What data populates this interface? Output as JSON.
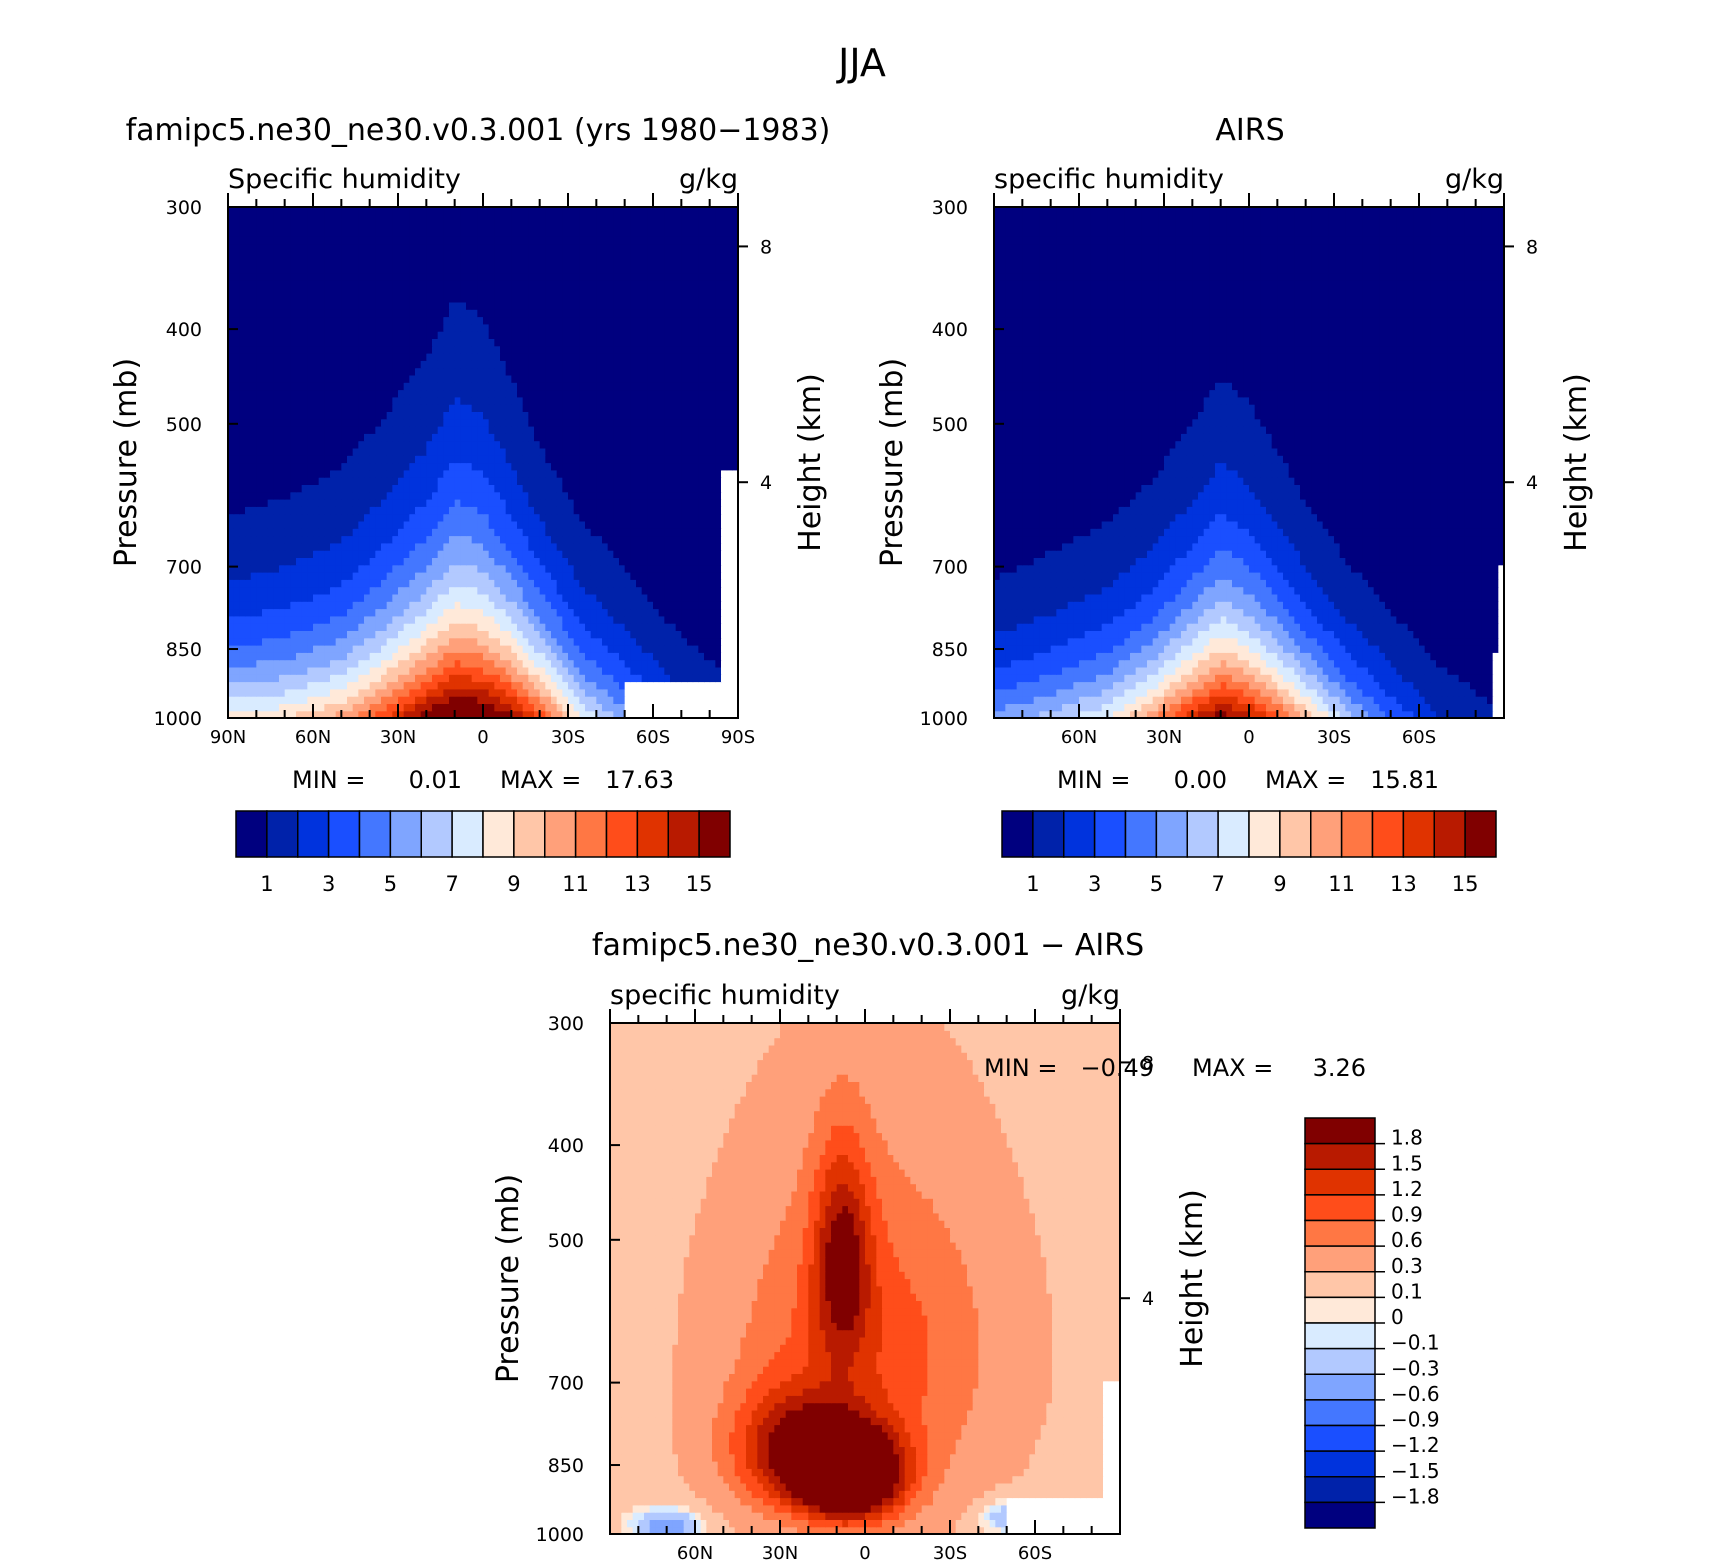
{
  "figure_title": "JJA",
  "panel_subtitle_unit": "g/kg",
  "chart_data": [
    {
      "type": "heatmap",
      "title": "famipc5.ne30_ne30.v0.3.001 (yrs 1980−1983)",
      "left_label": "Specific humidity",
      "right_label": "g/kg",
      "ylabel": "Pressure (mb)",
      "ylabel_right": "Height (km)",
      "x_ticks": [
        90,
        60,
        30,
        0,
        -30,
        -60,
        -90
      ],
      "x_tick_labels": [
        "90N",
        "60N",
        "30N",
        "0",
        "30S",
        "60S",
        "90S"
      ],
      "y_ticks": [
        300,
        400,
        500,
        700,
        850,
        1000
      ],
      "y_tick_labels": [
        "300",
        "400",
        "500",
        "700",
        "850",
        "1000"
      ],
      "height_ticks": [
        8,
        4
      ],
      "height_tick_labels": [
        "8",
        "4"
      ],
      "xlim": [
        90,
        -90
      ],
      "ylim": [
        1000,
        300
      ],
      "min_label": "MIN =",
      "min_value": "0.01",
      "max_label": "MAX =",
      "max_value": "17.63",
      "colorbar_labels": [
        "1",
        "3",
        "5",
        "7",
        "9",
        "11",
        "13",
        "15"
      ],
      "levels": [
        1,
        2,
        3,
        4,
        5,
        6,
        7,
        8,
        9,
        10,
        11,
        12,
        13,
        14,
        15
      ],
      "colors": [
        "#00007f",
        "#0022aa",
        "#0033dd",
        "#1a4fff",
        "#4477ff",
        "#7fa5ff",
        "#b2c9ff",
        "#d9ebff",
        "#ffe9d9",
        "#ffc6a8",
        "#ffa07a",
        "#ff7744",
        "#ff4d1a",
        "#e03300",
        "#b81a00",
        "#800000"
      ],
      "profile": [
        {
          "lat": 90,
          "surface": 8.5,
          "scale": 1.6
        },
        {
          "lat": 70,
          "surface": 9.0,
          "scale": 1.7
        },
        {
          "lat": 50,
          "surface": 10.5,
          "scale": 1.8
        },
        {
          "lat": 35,
          "surface": 13.0,
          "scale": 2.0
        },
        {
          "lat": 20,
          "surface": 16.0,
          "scale": 2.2
        },
        {
          "lat": 10,
          "surface": 17.5,
          "scale": 2.5
        },
        {
          "lat": 0,
          "surface": 17.0,
          "scale": 2.4
        },
        {
          "lat": -10,
          "surface": 15.5,
          "scale": 2.1
        },
        {
          "lat": -20,
          "surface": 13.0,
          "scale": 1.8
        },
        {
          "lat": -35,
          "surface": 8.0,
          "scale": 1.6
        },
        {
          "lat": -50,
          "surface": 5.5,
          "scale": 1.5
        },
        {
          "lat": -65,
          "surface": 3.5,
          "scale": 1.3
        },
        {
          "lat": -90,
          "surface": 1.5,
          "scale": 1.1
        }
      ],
      "missing": [
        {
          "lat0": -50,
          "lat1": -90,
          "p0": 920,
          "p1": 1000
        },
        {
          "lat0": -85,
          "lat1": -90,
          "p0": 560,
          "p1": 1000
        }
      ]
    },
    {
      "type": "heatmap",
      "title": "AIRS",
      "left_label": "specific humidity",
      "right_label": "g/kg",
      "ylabel": "Pressure (mb)",
      "ylabel_right": "Height (km)",
      "x_ticks": [
        60,
        30,
        0,
        -30,
        -60
      ],
      "x_tick_labels": [
        "60N",
        "30N",
        "0",
        "30S",
        "60S"
      ],
      "y_ticks": [
        300,
        400,
        500,
        700,
        850,
        1000
      ],
      "y_tick_labels": [
        "300",
        "400",
        "500",
        "700",
        "850",
        "1000"
      ],
      "height_ticks": [
        8,
        4
      ],
      "height_tick_labels": [
        "8",
        "4"
      ],
      "xlim": [
        90,
        -90
      ],
      "ylim": [
        1000,
        300
      ],
      "min_label": "MIN =",
      "min_value": "0.00",
      "max_label": "MAX =",
      "max_value": "15.81",
      "colorbar_labels": [
        "1",
        "3",
        "5",
        "7",
        "9",
        "11",
        "13",
        "15"
      ],
      "levels": [
        1,
        2,
        3,
        4,
        5,
        6,
        7,
        8,
        9,
        10,
        11,
        12,
        13,
        14,
        15
      ],
      "colors": [
        "#00007f",
        "#0022aa",
        "#0033dd",
        "#1a4fff",
        "#4477ff",
        "#7fa5ff",
        "#b2c9ff",
        "#d9ebff",
        "#ffe9d9",
        "#ffc6a8",
        "#ffa07a",
        "#ff7744",
        "#ff4d1a",
        "#e03300",
        "#b81a00",
        "#800000"
      ],
      "profile": [
        {
          "lat": 90,
          "surface": 5.5,
          "scale": 1.4
        },
        {
          "lat": 70,
          "surface": 6.5,
          "scale": 1.5
        },
        {
          "lat": 50,
          "surface": 8.0,
          "scale": 1.6
        },
        {
          "lat": 35,
          "surface": 10.5,
          "scale": 1.7
        },
        {
          "lat": 20,
          "surface": 14.0,
          "scale": 1.9
        },
        {
          "lat": 10,
          "surface": 15.8,
          "scale": 2.1
        },
        {
          "lat": 0,
          "surface": 14.5,
          "scale": 2.0
        },
        {
          "lat": -10,
          "surface": 12.5,
          "scale": 1.8
        },
        {
          "lat": -20,
          "surface": 10.0,
          "scale": 1.6
        },
        {
          "lat": -35,
          "surface": 6.5,
          "scale": 1.4
        },
        {
          "lat": -50,
          "surface": 4.0,
          "scale": 1.3
        },
        {
          "lat": -65,
          "surface": 2.2,
          "scale": 1.2
        },
        {
          "lat": -90,
          "surface": 1.0,
          "scale": 1.1
        }
      ],
      "missing": [
        {
          "lat0": -86,
          "lat1": -90,
          "p0": 850,
          "p1": 1000
        },
        {
          "lat0": -88,
          "lat1": -90,
          "p0": 700,
          "p1": 1000
        }
      ]
    },
    {
      "type": "heatmap",
      "title": "famipc5.ne30_ne30.v0.3.001 − AIRS",
      "left_label": "specific humidity",
      "right_label": "g/kg",
      "ylabel": "Pressure (mb)",
      "ylabel_right": "Height (km)",
      "x_ticks": [
        60,
        30,
        0,
        -30,
        -60
      ],
      "x_tick_labels": [
        "60N",
        "30N",
        "0",
        "30S",
        "60S"
      ],
      "y_ticks": [
        300,
        400,
        500,
        700,
        850,
        1000
      ],
      "y_tick_labels": [
        "300",
        "400",
        "500",
        "700",
        "850",
        "1000"
      ],
      "height_ticks": [
        8,
        4
      ],
      "height_tick_labels": [
        "8",
        "4"
      ],
      "xlim": [
        90,
        -90
      ],
      "ylim": [
        1000,
        300
      ],
      "min_label": "MIN =",
      "min_value": "−0.49",
      "max_label": "MAX =",
      "max_value": "3.26",
      "colorbar_labels": [
        "1.8",
        "1.5",
        "1.2",
        "0.9",
        "0.6",
        "0.3",
        "0.1",
        "0",
        "−0.1",
        "−0.3",
        "−0.6",
        "−0.9",
        "−1.2",
        "−1.5",
        "−1.8"
      ],
      "levels": [
        -1.8,
        -1.5,
        -1.2,
        -0.9,
        -0.6,
        -0.3,
        -0.1,
        0,
        0.1,
        0.3,
        0.6,
        0.9,
        1.2,
        1.5,
        1.8
      ],
      "colors": [
        "#00007f",
        "#0022aa",
        "#0033dd",
        "#1a4fff",
        "#4477ff",
        "#7fa5ff",
        "#b2c9ff",
        "#d9ebff",
        "#ffe9d9",
        "#ffc6a8",
        "#ffa07a",
        "#ff7744",
        "#ff4d1a",
        "#e03300",
        "#b81a00",
        "#800000"
      ],
      "diff_features": [
        {
          "lat": 5,
          "p": 870,
          "sigma_lat": 18,
          "sigma_p": 90,
          "amp": 2.8
        },
        {
          "lat": 25,
          "p": 820,
          "sigma_lat": 22,
          "sigma_p": 110,
          "amp": 1.4
        },
        {
          "lat": 8,
          "p": 520,
          "sigma_lat": 10,
          "sigma_p": 130,
          "amp": 1.3
        },
        {
          "lat": 0,
          "p": 650,
          "sigma_lat": 45,
          "sigma_p": 260,
          "amp": 0.9
        },
        {
          "lat": 70,
          "p": 980,
          "sigma_lat": 12,
          "sigma_p": 40,
          "amp": -0.7
        },
        {
          "lat": -50,
          "p": 960,
          "sigma_lat": 10,
          "sigma_p": 40,
          "amp": -0.5
        }
      ],
      "missing": [
        {
          "lat0": -50,
          "lat1": -90,
          "p0": 920,
          "p1": 1000
        },
        {
          "lat0": -85,
          "lat1": -90,
          "p0": 700,
          "p1": 1000
        }
      ]
    }
  ]
}
